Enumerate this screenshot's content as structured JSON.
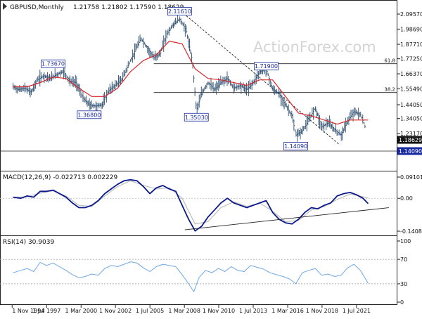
{
  "header": {
    "symbol": "GBPUSD,Monthly",
    "ohlc": "1.21758 1.21802 1.17590 1.18629"
  },
  "watermark": "ActionForex.com",
  "colors": {
    "price": "#2e4f6f",
    "ma": "#d9232b",
    "macd": "#0b1a8c",
    "signal": "#b9b9b9",
    "rsi": "#6fa7e6",
    "labelBorder": "#1a2aa0",
    "labelText": "#1a2aa0",
    "currentBg": "#111111",
    "supportBg": "#1a2aa0"
  },
  "chart_data": [
    {
      "type": "line",
      "panel": "price",
      "title": "GBPUSD,Monthly",
      "ohlc": "1.21758 1.21802 1.17590 1.18629",
      "y_axis_ticks": [
        "2.09570",
        "1.98690",
        "1.87710",
        "1.77250",
        "1.66370",
        "1.55490",
        "1.44050",
        "1.34050",
        "1.23170"
      ],
      "x_labels": [
        "1 Nov 1994",
        "1 Jul 1997",
        "1 Mar 2000",
        "1 Nov 2002",
        "1 Jul 2005",
        "1 Mar 2008",
        "1 Nov 2010",
        "1 Jul 2013",
        "1 Mar 2016",
        "1 Nov 2018",
        "1 Jul 2021"
      ],
      "annotations": [
        {
          "label": "1.73670",
          "x": 1998.0,
          "y": 1.7367
        },
        {
          "label": "1.36800",
          "x": 2000.8,
          "y": 1.368
        },
        {
          "label": "2.11610",
          "x": 2007.8,
          "y": 2.1161
        },
        {
          "label": "1.35030",
          "x": 2009.1,
          "y": 1.3503
        },
        {
          "label": "1.71900",
          "x": 2014.5,
          "y": 1.719
        },
        {
          "label": "1.14090",
          "x": 2016.8,
          "y": 1.1409
        }
      ],
      "fib_levels": [
        {
          "label": "61.8",
          "y": 1.7367
        },
        {
          "label": "38.2",
          "y": 1.5285
        }
      ],
      "horizontal_lines": [
        {
          "y": 1.1409,
          "label": "1.14090"
        }
      ],
      "current": {
        "label": "1.18629",
        "y": 1.18629
      },
      "series": [
        {
          "kind": "close",
          "x": [
            1994.9,
            1995.3,
            1995.8,
            1996.3,
            1996.8,
            1997.3,
            1997.8,
            1998.3,
            1998.8,
            1999.3,
            1999.8,
            2000.3,
            2000.8,
            2001.3,
            2001.8,
            2002.3,
            2002.8,
            2003.3,
            2003.8,
            2004.3,
            2004.8,
            2005.3,
            2005.8,
            2006.3,
            2006.8,
            2007.3,
            2007.8,
            2008.3,
            2008.8,
            2009.1,
            2009.5,
            2010.0,
            2010.5,
            2011.0,
            2011.5,
            2012.0,
            2012.5,
            2013.0,
            2013.5,
            2014.0,
            2014.5,
            2015.0,
            2015.5,
            2016.0,
            2016.5,
            2016.8,
            2017.3,
            2017.8,
            2018.3,
            2018.8,
            2019.3,
            2019.8,
            2020.3,
            2020.8,
            2021.3,
            2021.8,
            2022.1,
            2022.4
          ],
          "y": [
            1.57,
            1.55,
            1.56,
            1.53,
            1.62,
            1.65,
            1.63,
            1.66,
            1.68,
            1.61,
            1.6,
            1.49,
            1.44,
            1.43,
            1.44,
            1.54,
            1.58,
            1.62,
            1.72,
            1.82,
            1.92,
            1.85,
            1.78,
            1.81,
            1.95,
            2.02,
            2.06,
            1.98,
            1.75,
            1.4,
            1.52,
            1.6,
            1.55,
            1.6,
            1.63,
            1.56,
            1.58,
            1.55,
            1.6,
            1.68,
            1.7,
            1.55,
            1.52,
            1.44,
            1.36,
            1.22,
            1.25,
            1.33,
            1.42,
            1.28,
            1.31,
            1.26,
            1.22,
            1.32,
            1.39,
            1.37,
            1.3,
            1.186
          ]
        },
        {
          "kind": "ma",
          "x": [
            1994.9,
            1996.0,
            1997.0,
            1998.0,
            1999.0,
            2000.0,
            2001.0,
            2002.0,
            2003.0,
            2004.0,
            2005.0,
            2006.0,
            2007.0,
            2008.0,
            2009.0,
            2010.0,
            2011.0,
            2012.0,
            2013.0,
            2014.0,
            2015.0,
            2016.0,
            2017.0,
            2018.0,
            2019.0,
            2020.0,
            2021.0,
            2022.4
          ],
          "y": [
            1.57,
            1.57,
            1.6,
            1.64,
            1.63,
            1.56,
            1.5,
            1.5,
            1.56,
            1.68,
            1.76,
            1.8,
            1.9,
            1.88,
            1.7,
            1.63,
            1.62,
            1.6,
            1.58,
            1.62,
            1.62,
            1.5,
            1.38,
            1.36,
            1.33,
            1.3,
            1.33,
            1.33
          ]
        }
      ]
    },
    {
      "type": "line",
      "panel": "macd",
      "title": "MACD(12,26,9) -0.022713 0.002229",
      "y_axis_ticks": [
        "0.091015",
        "0.00",
        "-0.140843"
      ],
      "trendline": {
        "x": [
          2008.2,
          2024.0
        ],
        "y": [
          -0.135,
          -0.04
        ]
      },
      "series": [
        {
          "name": "MACD",
          "x": [
            1994.9,
            1995.5,
            1996.0,
            1996.5,
            1997.0,
            1997.5,
            1998.0,
            1998.5,
            1999.0,
            1999.5,
            2000.0,
            2000.5,
            2001.0,
            2001.5,
            2002.0,
            2002.5,
            2003.0,
            2003.5,
            2004.0,
            2004.5,
            2005.0,
            2005.5,
            2006.0,
            2006.5,
            2007.0,
            2007.5,
            2008.0,
            2008.5,
            2009.0,
            2009.5,
            2010.0,
            2010.5,
            2011.0,
            2011.5,
            2012.0,
            2012.5,
            2013.0,
            2013.5,
            2014.0,
            2014.5,
            2015.0,
            2015.5,
            2016.0,
            2016.5,
            2017.0,
            2017.5,
            2018.0,
            2018.5,
            2019.0,
            2019.5,
            2020.0,
            2020.5,
            2021.0,
            2021.5,
            2022.0,
            2022.4
          ],
          "y": [
            0.005,
            0.0,
            0.01,
            0.005,
            0.03,
            0.03,
            0.035,
            0.02,
            0.005,
            -0.02,
            -0.04,
            -0.04,
            -0.03,
            -0.01,
            0.02,
            0.04,
            0.06,
            0.075,
            0.08,
            0.075,
            0.05,
            0.02,
            0.045,
            0.055,
            0.04,
            0.03,
            -0.03,
            -0.09,
            -0.14,
            -0.12,
            -0.08,
            -0.05,
            -0.02,
            0.0,
            -0.02,
            -0.03,
            -0.04,
            -0.03,
            -0.02,
            -0.01,
            -0.06,
            -0.09,
            -0.105,
            -0.11,
            -0.09,
            -0.06,
            -0.04,
            -0.045,
            -0.03,
            -0.02,
            0.01,
            0.02,
            0.025,
            0.015,
            0.0,
            -0.0227
          ]
        },
        {
          "name": "Signal",
          "x": [
            1994.9,
            1996.0,
            1997.0,
            1998.0,
            1999.0,
            2000.0,
            2001.0,
            2002.0,
            2003.0,
            2004.0,
            2005.0,
            2006.0,
            2007.0,
            2008.0,
            2009.0,
            2010.0,
            2011.0,
            2012.0,
            2013.0,
            2014.0,
            2015.0,
            2016.0,
            2017.0,
            2018.0,
            2019.0,
            2020.0,
            2021.0,
            2022.4
          ],
          "y": [
            0.005,
            0.006,
            0.022,
            0.032,
            0.01,
            -0.03,
            -0.035,
            0.01,
            0.05,
            0.075,
            0.055,
            0.04,
            0.045,
            0.0,
            -0.11,
            -0.1,
            -0.04,
            -0.015,
            -0.035,
            -0.02,
            -0.055,
            -0.1,
            -0.095,
            -0.05,
            -0.035,
            -0.005,
            0.018,
            0.0022
          ]
        }
      ]
    },
    {
      "type": "line",
      "panel": "rsi",
      "title": "RSI(14) 30.9039",
      "y_axis_ticks": [
        "100",
        "70",
        "30",
        "0"
      ],
      "guides": [
        70,
        30
      ],
      "series": [
        {
          "name": "RSI",
          "x": [
            1994.9,
            1995.5,
            1996.0,
            1996.5,
            1997.0,
            1997.5,
            1998.0,
            1998.5,
            1999.0,
            1999.5,
            2000.0,
            2000.5,
            2001.0,
            2001.5,
            2002.0,
            2002.5,
            2003.0,
            2003.5,
            2004.0,
            2004.5,
            2005.0,
            2005.5,
            2006.0,
            2006.5,
            2007.0,
            2007.5,
            2008.0,
            2008.5,
            2008.9,
            2009.3,
            2009.8,
            2010.3,
            2010.8,
            2011.3,
            2011.8,
            2012.3,
            2012.8,
            2013.3,
            2013.8,
            2014.3,
            2014.8,
            2015.3,
            2015.8,
            2016.3,
            2016.8,
            2017.3,
            2017.8,
            2018.3,
            2018.8,
            2019.3,
            2019.8,
            2020.3,
            2020.8,
            2021.3,
            2021.8,
            2022.4
          ],
          "y": [
            48,
            52,
            55,
            50,
            65,
            60,
            64,
            58,
            52,
            45,
            40,
            42,
            46,
            44,
            55,
            60,
            58,
            62,
            66,
            64,
            56,
            50,
            58,
            62,
            60,
            58,
            45,
            30,
            17,
            40,
            52,
            48,
            55,
            50,
            58,
            52,
            50,
            60,
            57,
            54,
            48,
            45,
            42,
            38,
            30,
            48,
            52,
            55,
            44,
            46,
            42,
            44,
            56,
            62,
            52,
            30.9
          ]
        }
      ]
    }
  ]
}
